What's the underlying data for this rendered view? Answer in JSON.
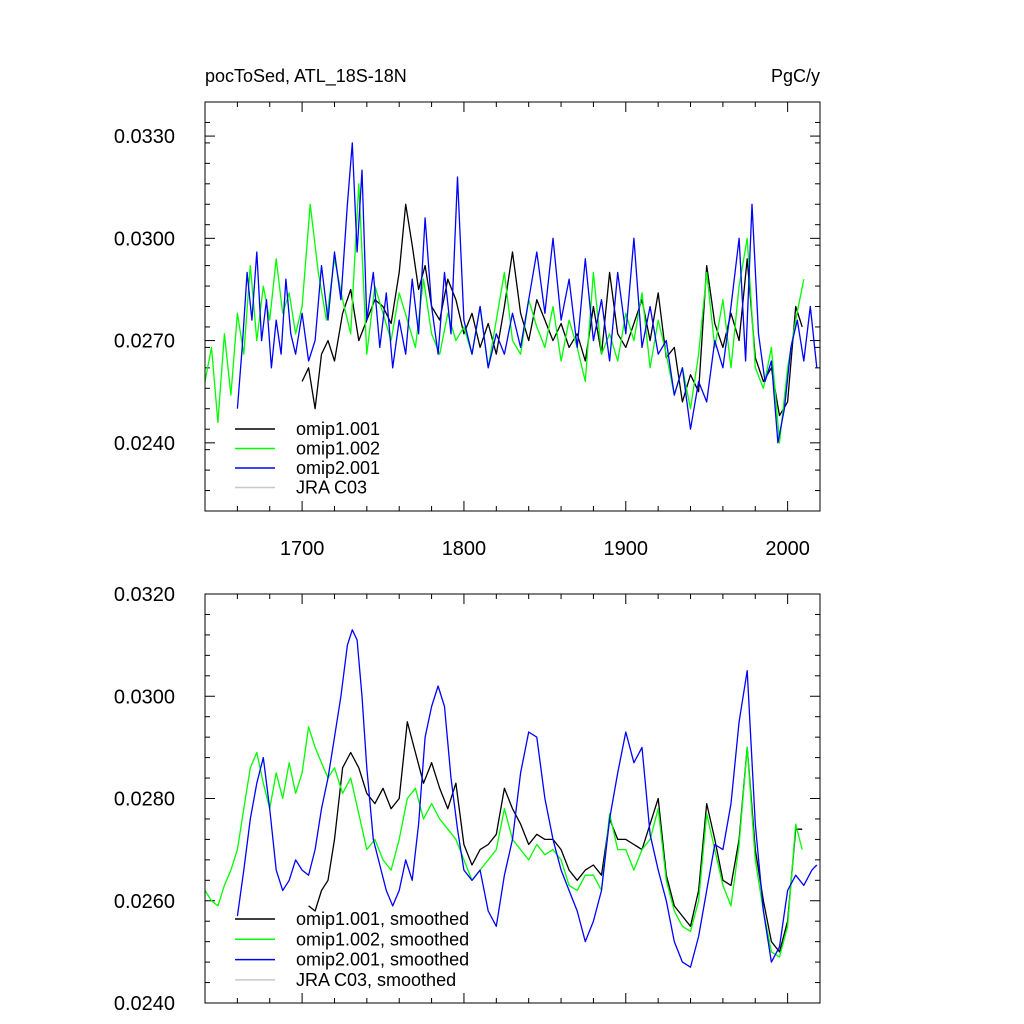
{
  "chart_data": [
    {
      "type": "line",
      "title": "pocToSed, ATL_18S-18N",
      "units": "PgC/y",
      "xlim": [
        1640,
        2020
      ],
      "ylim": [
        0.022,
        0.034
      ],
      "xticks": [
        1700,
        1800,
        1900,
        2000
      ],
      "yticks": [
        0.024,
        0.027,
        0.03,
        0.033
      ],
      "ytick_labels": [
        "0.0240",
        "0.0270",
        "0.0300",
        "0.0330"
      ],
      "legend_position": "bottom-left",
      "series": [
        {
          "name": "omip1.001",
          "color": "#000000",
          "x": [
            1700,
            1704,
            1708,
            1712,
            1716,
            1720,
            1725,
            1730,
            1735,
            1740,
            1745,
            1750,
            1755,
            1760,
            1764,
            1768,
            1772,
            1776,
            1780,
            1785,
            1790,
            1795,
            1800,
            1805,
            1810,
            1815,
            1820,
            1825,
            1830,
            1835,
            1840,
            1845,
            1850,
            1855,
            1860,
            1865,
            1870,
            1875,
            1880,
            1885,
            1890,
            1895,
            1900,
            1905,
            1910,
            1915,
            1920,
            1925,
            1930,
            1935,
            1940,
            1945,
            1950,
            1955,
            1960,
            1965,
            1970,
            1975,
            1980,
            1985,
            1990,
            1995,
            2000,
            2005,
            2009
          ],
          "y": [
            0.0258,
            0.0262,
            0.025,
            0.0266,
            0.027,
            0.0264,
            0.0278,
            0.0285,
            0.027,
            0.0276,
            0.0282,
            0.028,
            0.0275,
            0.029,
            0.031,
            0.0298,
            0.0285,
            0.0292,
            0.028,
            0.0276,
            0.0288,
            0.0282,
            0.0272,
            0.0278,
            0.0268,
            0.0275,
            0.0266,
            0.028,
            0.0296,
            0.0278,
            0.027,
            0.0282,
            0.0276,
            0.027,
            0.0275,
            0.0268,
            0.0272,
            0.0264,
            0.028,
            0.0266,
            0.029,
            0.0272,
            0.0268,
            0.0275,
            0.0282,
            0.027,
            0.0284,
            0.0265,
            0.0268,
            0.0252,
            0.026,
            0.0255,
            0.0292,
            0.0275,
            0.0268,
            0.0278,
            0.027,
            0.0294,
            0.0265,
            0.0258,
            0.0262,
            0.0248,
            0.0252,
            0.028,
            0.0274
          ]
        },
        {
          "name": "omip1.002",
          "color": "#00ff00",
          "x": [
            1640,
            1644,
            1648,
            1652,
            1656,
            1660,
            1664,
            1668,
            1672,
            1676,
            1680,
            1684,
            1688,
            1692,
            1696,
            1700,
            1705,
            1710,
            1715,
            1720,
            1725,
            1730,
            1735,
            1740,
            1745,
            1750,
            1755,
            1760,
            1765,
            1770,
            1775,
            1780,
            1785,
            1790,
            1795,
            1800,
            1805,
            1810,
            1815,
            1820,
            1825,
            1830,
            1835,
            1840,
            1845,
            1850,
            1855,
            1860,
            1865,
            1870,
            1875,
            1880,
            1885,
            1890,
            1895,
            1900,
            1905,
            1910,
            1915,
            1920,
            1925,
            1930,
            1935,
            1940,
            1945,
            1950,
            1955,
            1960,
            1965,
            1970,
            1975,
            1980,
            1985,
            1990,
            1995,
            2000,
            2005,
            2010
          ],
          "y": [
            0.0258,
            0.0268,
            0.0246,
            0.0272,
            0.0254,
            0.0278,
            0.0266,
            0.0292,
            0.027,
            0.0286,
            0.0276,
            0.0294,
            0.0278,
            0.0284,
            0.0272,
            0.028,
            0.031,
            0.029,
            0.0276,
            0.0294,
            0.0282,
            0.0272,
            0.0316,
            0.0266,
            0.0286,
            0.0278,
            0.027,
            0.0284,
            0.0276,
            0.0268,
            0.0288,
            0.0272,
            0.0266,
            0.0278,
            0.027,
            0.0274,
            0.0266,
            0.028,
            0.0262,
            0.0276,
            0.029,
            0.027,
            0.0266,
            0.0282,
            0.0274,
            0.0268,
            0.028,
            0.0264,
            0.0276,
            0.0268,
            0.0258,
            0.029,
            0.0266,
            0.0272,
            0.0264,
            0.0278,
            0.027,
            0.0284,
            0.0262,
            0.0276,
            0.0266,
            0.0254,
            0.0262,
            0.025,
            0.0266,
            0.029,
            0.0268,
            0.0282,
            0.0262,
            0.0286,
            0.03,
            0.0262,
            0.0256,
            0.0268,
            0.024,
            0.0262,
            0.0276,
            0.0288
          ]
        },
        {
          "name": "omip2.001",
          "color": "#0000ff",
          "x": [
            1660,
            1663,
            1666,
            1669,
            1672,
            1675,
            1678,
            1681,
            1684,
            1687,
            1690,
            1693,
            1696,
            1700,
            1704,
            1708,
            1712,
            1716,
            1720,
            1724,
            1728,
            1731,
            1734,
            1737,
            1740,
            1744,
            1748,
            1752,
            1756,
            1760,
            1764,
            1768,
            1772,
            1776,
            1780,
            1784,
            1788,
            1792,
            1796,
            1800,
            1805,
            1810,
            1815,
            1820,
            1825,
            1830,
            1835,
            1840,
            1845,
            1850,
            1855,
            1860,
            1865,
            1870,
            1875,
            1880,
            1885,
            1890,
            1895,
            1900,
            1905,
            1910,
            1915,
            1920,
            1925,
            1930,
            1935,
            1940,
            1945,
            1950,
            1955,
            1960,
            1965,
            1970,
            1974,
            1978,
            1982,
            1986,
            1990,
            1994,
            1998,
            2002,
            2006,
            2010,
            2014,
            2018
          ],
          "y": [
            0.025,
            0.0268,
            0.029,
            0.0276,
            0.0296,
            0.027,
            0.0282,
            0.0262,
            0.0276,
            0.0266,
            0.0288,
            0.0272,
            0.0266,
            0.0278,
            0.0264,
            0.027,
            0.0292,
            0.0276,
            0.0296,
            0.0282,
            0.031,
            0.0328,
            0.0296,
            0.032,
            0.0276,
            0.029,
            0.0268,
            0.0284,
            0.0262,
            0.0276,
            0.0266,
            0.0288,
            0.0272,
            0.0306,
            0.028,
            0.0266,
            0.029,
            0.0272,
            0.0318,
            0.0276,
            0.0266,
            0.028,
            0.0262,
            0.0272,
            0.0266,
            0.0278,
            0.0268,
            0.0282,
            0.0296,
            0.0278,
            0.03,
            0.0276,
            0.0288,
            0.0268,
            0.0294,
            0.027,
            0.0282,
            0.0264,
            0.029,
            0.0272,
            0.03,
            0.0268,
            0.028,
            0.0266,
            0.027,
            0.0254,
            0.0262,
            0.0244,
            0.0258,
            0.0252,
            0.027,
            0.0262,
            0.028,
            0.03,
            0.0264,
            0.031,
            0.0272,
            0.0258,
            0.0264,
            0.024,
            0.025,
            0.0268,
            0.0276,
            0.0264,
            0.028,
            0.0262
          ]
        },
        {
          "name": "JRA C03",
          "color": "#c8c8c8",
          "x": [],
          "y": []
        }
      ]
    },
    {
      "type": "line",
      "xlim": [
        1640,
        2020
      ],
      "ylim": [
        0.024,
        0.032
      ],
      "xticks": [
        1700,
        1800,
        1900,
        2000
      ],
      "yticks": [
        0.024,
        0.026,
        0.028,
        0.03,
        0.032
      ],
      "ytick_labels": [
        "0.0240",
        "0.0260",
        "0.0280",
        "0.0300",
        "0.0320"
      ],
      "legend_position": "bottom-left",
      "series": [
        {
          "name": "omip1.001, smoothed",
          "color": "#000000",
          "x": [
            1704,
            1708,
            1712,
            1716,
            1720,
            1725,
            1730,
            1735,
            1740,
            1745,
            1750,
            1755,
            1760,
            1765,
            1770,
            1775,
            1780,
            1785,
            1790,
            1795,
            1800,
            1805,
            1810,
            1815,
            1820,
            1825,
            1830,
            1835,
            1840,
            1845,
            1850,
            1855,
            1860,
            1865,
            1870,
            1875,
            1880,
            1885,
            1890,
            1895,
            1900,
            1905,
            1910,
            1915,
            1920,
            1925,
            1930,
            1935,
            1940,
            1945,
            1950,
            1955,
            1960,
            1965,
            1970,
            1975,
            1980,
            1985,
            1990,
            1995,
            2000,
            2005,
            2009
          ],
          "y": [
            0.0259,
            0.0258,
            0.0262,
            0.0264,
            0.0272,
            0.0286,
            0.0289,
            0.0286,
            0.0281,
            0.0279,
            0.0282,
            0.0278,
            0.028,
            0.0295,
            0.0289,
            0.0283,
            0.0287,
            0.0282,
            0.0278,
            0.0283,
            0.0271,
            0.0267,
            0.027,
            0.0271,
            0.0273,
            0.0282,
            0.0278,
            0.0275,
            0.0271,
            0.0273,
            0.0272,
            0.0272,
            0.027,
            0.0266,
            0.0264,
            0.0266,
            0.0267,
            0.0265,
            0.0276,
            0.0272,
            0.0272,
            0.0271,
            0.027,
            0.0275,
            0.028,
            0.0265,
            0.0259,
            0.0257,
            0.0255,
            0.0262,
            0.0279,
            0.0272,
            0.0264,
            0.0263,
            0.0272,
            0.029,
            0.027,
            0.026,
            0.0252,
            0.025,
            0.0256,
            0.0274,
            0.0274
          ]
        },
        {
          "name": "omip1.002, smoothed",
          "color": "#00ff00",
          "x": [
            1640,
            1644,
            1648,
            1652,
            1656,
            1660,
            1664,
            1668,
            1672,
            1676,
            1680,
            1684,
            1688,
            1692,
            1696,
            1700,
            1704,
            1708,
            1712,
            1716,
            1720,
            1725,
            1730,
            1735,
            1740,
            1745,
            1750,
            1755,
            1760,
            1765,
            1770,
            1775,
            1780,
            1785,
            1790,
            1795,
            1800,
            1805,
            1810,
            1815,
            1820,
            1825,
            1830,
            1835,
            1840,
            1845,
            1850,
            1855,
            1860,
            1865,
            1870,
            1875,
            1880,
            1885,
            1890,
            1895,
            1900,
            1905,
            1910,
            1915,
            1920,
            1925,
            1930,
            1935,
            1940,
            1945,
            1950,
            1955,
            1960,
            1965,
            1970,
            1975,
            1980,
            1985,
            1990,
            1995,
            2000,
            2005,
            2009
          ],
          "y": [
            0.0262,
            0.026,
            0.0259,
            0.0263,
            0.0266,
            0.027,
            0.0278,
            0.0286,
            0.0289,
            0.0283,
            0.0278,
            0.0285,
            0.028,
            0.0287,
            0.0281,
            0.0285,
            0.0294,
            0.029,
            0.0287,
            0.0284,
            0.0286,
            0.0281,
            0.0284,
            0.0277,
            0.027,
            0.0272,
            0.0268,
            0.0266,
            0.0272,
            0.028,
            0.0282,
            0.0276,
            0.0279,
            0.0276,
            0.0274,
            0.0272,
            0.0268,
            0.0264,
            0.0266,
            0.0268,
            0.027,
            0.0278,
            0.0272,
            0.027,
            0.0268,
            0.0271,
            0.0269,
            0.027,
            0.0268,
            0.0263,
            0.0262,
            0.0265,
            0.0265,
            0.0262,
            0.0277,
            0.027,
            0.027,
            0.0266,
            0.027,
            0.0272,
            0.0278,
            0.0264,
            0.0258,
            0.0255,
            0.0254,
            0.026,
            0.0277,
            0.027,
            0.0263,
            0.0259,
            0.0271,
            0.029,
            0.0268,
            0.0258,
            0.025,
            0.0249,
            0.0255,
            0.0275,
            0.027
          ]
        },
        {
          "name": "omip2.001, smoothed",
          "color": "#0000ff",
          "x": [
            1660,
            1664,
            1668,
            1672,
            1676,
            1680,
            1684,
            1688,
            1692,
            1696,
            1700,
            1704,
            1708,
            1712,
            1716,
            1720,
            1724,
            1728,
            1731,
            1734,
            1737,
            1740,
            1744,
            1748,
            1752,
            1756,
            1760,
            1764,
            1768,
            1772,
            1776,
            1780,
            1784,
            1788,
            1792,
            1796,
            1800,
            1805,
            1810,
            1815,
            1820,
            1825,
            1830,
            1835,
            1840,
            1845,
            1850,
            1855,
            1860,
            1865,
            1870,
            1875,
            1880,
            1885,
            1890,
            1895,
            1900,
            1905,
            1910,
            1915,
            1920,
            1925,
            1930,
            1935,
            1940,
            1945,
            1950,
            1955,
            1960,
            1965,
            1970,
            1975,
            1980,
            1985,
            1990,
            1995,
            2000,
            2005,
            2010,
            2015,
            2018
          ],
          "y": [
            0.0257,
            0.0266,
            0.0276,
            0.0283,
            0.0288,
            0.0278,
            0.0266,
            0.0262,
            0.0264,
            0.0268,
            0.0266,
            0.0265,
            0.027,
            0.0278,
            0.0284,
            0.0292,
            0.03,
            0.031,
            0.0313,
            0.0311,
            0.03,
            0.0286,
            0.0272,
            0.0267,
            0.0262,
            0.0259,
            0.0262,
            0.0268,
            0.0264,
            0.0275,
            0.0292,
            0.0298,
            0.0302,
            0.0298,
            0.0284,
            0.0274,
            0.0266,
            0.0264,
            0.0266,
            0.0258,
            0.0255,
            0.0265,
            0.0272,
            0.0285,
            0.0293,
            0.0292,
            0.028,
            0.0272,
            0.0266,
            0.0262,
            0.0258,
            0.0252,
            0.0256,
            0.0262,
            0.0276,
            0.0285,
            0.0293,
            0.0287,
            0.029,
            0.0273,
            0.0266,
            0.026,
            0.0252,
            0.0248,
            0.0247,
            0.0253,
            0.0262,
            0.0271,
            0.027,
            0.0279,
            0.0295,
            0.0305,
            0.0275,
            0.0258,
            0.0248,
            0.0251,
            0.0262,
            0.0265,
            0.0263,
            0.0266,
            0.0267
          ]
        },
        {
          "name": "JRA C03, smoothed",
          "color": "#c8c8c8",
          "x": [],
          "y": []
        }
      ]
    }
  ]
}
